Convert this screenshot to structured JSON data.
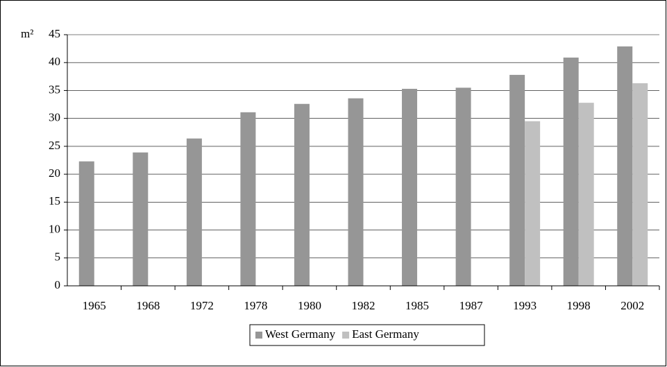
{
  "chart_data": {
    "type": "bar",
    "y_label": "m²",
    "categories": [
      "1965",
      "1968",
      "1972",
      "1978",
      "1980",
      "1982",
      "1985",
      "1987",
      "1993",
      "1998",
      "2002"
    ],
    "series": [
      {
        "name": "West Germany",
        "color": "#969696",
        "values": [
          22.3,
          23.9,
          26.4,
          31.1,
          32.6,
          33.6,
          35.3,
          35.5,
          37.8,
          40.9,
          42.9
        ]
      },
      {
        "name": "East Germany",
        "color": "#c0c0c0",
        "values": [
          null,
          null,
          null,
          null,
          null,
          null,
          null,
          null,
          29.5,
          32.8,
          36.3
        ]
      }
    ],
    "ylim": [
      0,
      45
    ],
    "yticks": [
      0,
      5,
      10,
      15,
      20,
      25,
      30,
      35,
      40,
      45
    ],
    "grid": true,
    "legend": "bottom"
  }
}
